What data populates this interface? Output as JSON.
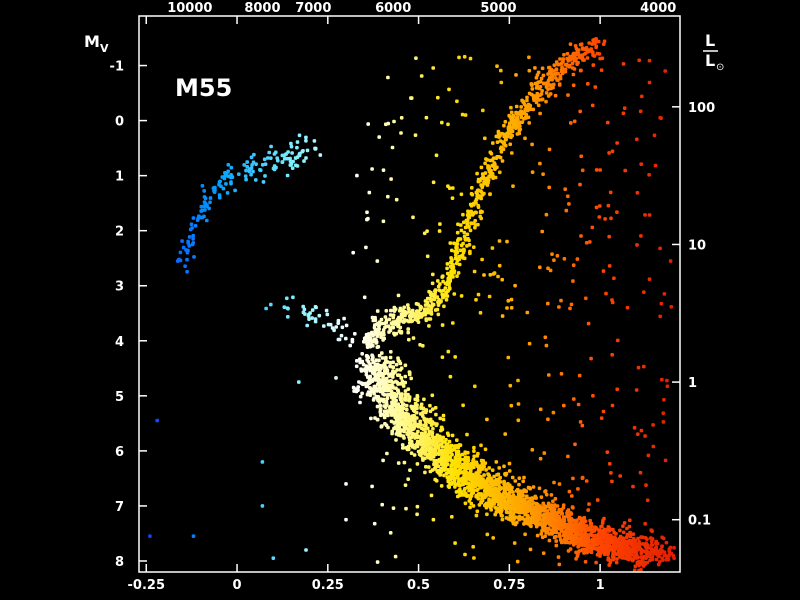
{
  "chart_data": {
    "type": "scatter",
    "title": "M55",
    "ylabel": "M",
    "ylabel_sub": "V",
    "ylabel_right_num": "L",
    "ylabel_right_den": "L",
    "ylabel_right_sun": "⊙",
    "x_range": [
      -0.27,
      1.22
    ],
    "y_range": [
      8.2,
      -1.9
    ],
    "x_ticks": [
      {
        "value": -0.25,
        "label": "-0.25"
      },
      {
        "value": 0,
        "label": "0"
      },
      {
        "value": 0.25,
        "label": "0.25"
      },
      {
        "value": 0.5,
        "label": "0.5"
      },
      {
        "value": 0.75,
        "label": "0.75"
      },
      {
        "value": 1,
        "label": "1"
      }
    ],
    "y_ticks": [
      {
        "value": -1,
        "label": "-1"
      },
      {
        "value": 0,
        "label": "0"
      },
      {
        "value": 1,
        "label": "1"
      },
      {
        "value": 2,
        "label": "2"
      },
      {
        "value": 3,
        "label": "3"
      },
      {
        "value": 4,
        "label": "4"
      },
      {
        "value": 5,
        "label": "5"
      },
      {
        "value": 6,
        "label": "6"
      },
      {
        "value": 7,
        "label": "7"
      },
      {
        "value": 8,
        "label": "8"
      }
    ],
    "temperature_ticks": [
      {
        "value": -0.13,
        "label": "10000"
      },
      {
        "value": 0.07,
        "label": "8000"
      },
      {
        "value": 0.21,
        "label": "7000"
      },
      {
        "value": 0.43,
        "label": "6000"
      },
      {
        "value": 0.72,
        "label": "5000"
      },
      {
        "value": 1.16,
        "label": "4000"
      }
    ],
    "luminosity_ticks": [
      {
        "value": -0.25,
        "label": "100"
      },
      {
        "value": 2.25,
        "label": "10"
      },
      {
        "value": 4.75,
        "label": "1"
      },
      {
        "value": 7.25,
        "label": "0.1"
      }
    ],
    "sequences": [
      {
        "name": "main-sequence",
        "points": [
          [
            0.36,
            4.3
          ],
          [
            0.38,
            4.8
          ],
          [
            0.42,
            5.3
          ],
          [
            0.48,
            5.8
          ],
          [
            0.55,
            6.2
          ],
          [
            0.63,
            6.6
          ],
          [
            0.72,
            6.95
          ],
          [
            0.82,
            7.25
          ],
          [
            0.92,
            7.55
          ],
          [
            1.02,
            7.75
          ],
          [
            1.1,
            7.9
          ]
        ],
        "width": 0.06,
        "count": 2600
      },
      {
        "name": "subgiant-branch",
        "points": [
          [
            0.35,
            4.1
          ],
          [
            0.4,
            3.75
          ],
          [
            0.47,
            3.55
          ],
          [
            0.53,
            3.4
          ],
          [
            0.58,
            3.0
          ]
        ],
        "width": 0.025,
        "count": 260
      },
      {
        "name": "red-giant-branch",
        "points": [
          [
            0.58,
            3.0
          ],
          [
            0.62,
            2.2
          ],
          [
            0.67,
            1.3
          ],
          [
            0.73,
            0.4
          ],
          [
            0.79,
            -0.2
          ],
          [
            0.86,
            -0.75
          ],
          [
            0.96,
            -1.25
          ],
          [
            1.0,
            -1.35
          ]
        ],
        "width": 0.02,
        "count": 520
      },
      {
        "name": "horizontal-branch",
        "points": [
          [
            -0.15,
            2.5
          ],
          [
            -0.12,
            2.0
          ],
          [
            -0.08,
            1.5
          ],
          [
            -0.03,
            1.05
          ],
          [
            0.03,
            0.85
          ],
          [
            0.1,
            0.75
          ],
          [
            0.16,
            0.65
          ],
          [
            0.22,
            0.5
          ]
        ],
        "width": 0.02,
        "count": 160
      },
      {
        "name": "blue-stragglers",
        "points": [
          [
            0.12,
            3.2
          ],
          [
            0.18,
            3.45
          ],
          [
            0.24,
            3.6
          ],
          [
            0.3,
            3.8
          ],
          [
            0.34,
            4.0
          ]
        ],
        "width": 0.04,
        "count": 45
      }
    ],
    "field_star_count": 380,
    "grid": false
  }
}
